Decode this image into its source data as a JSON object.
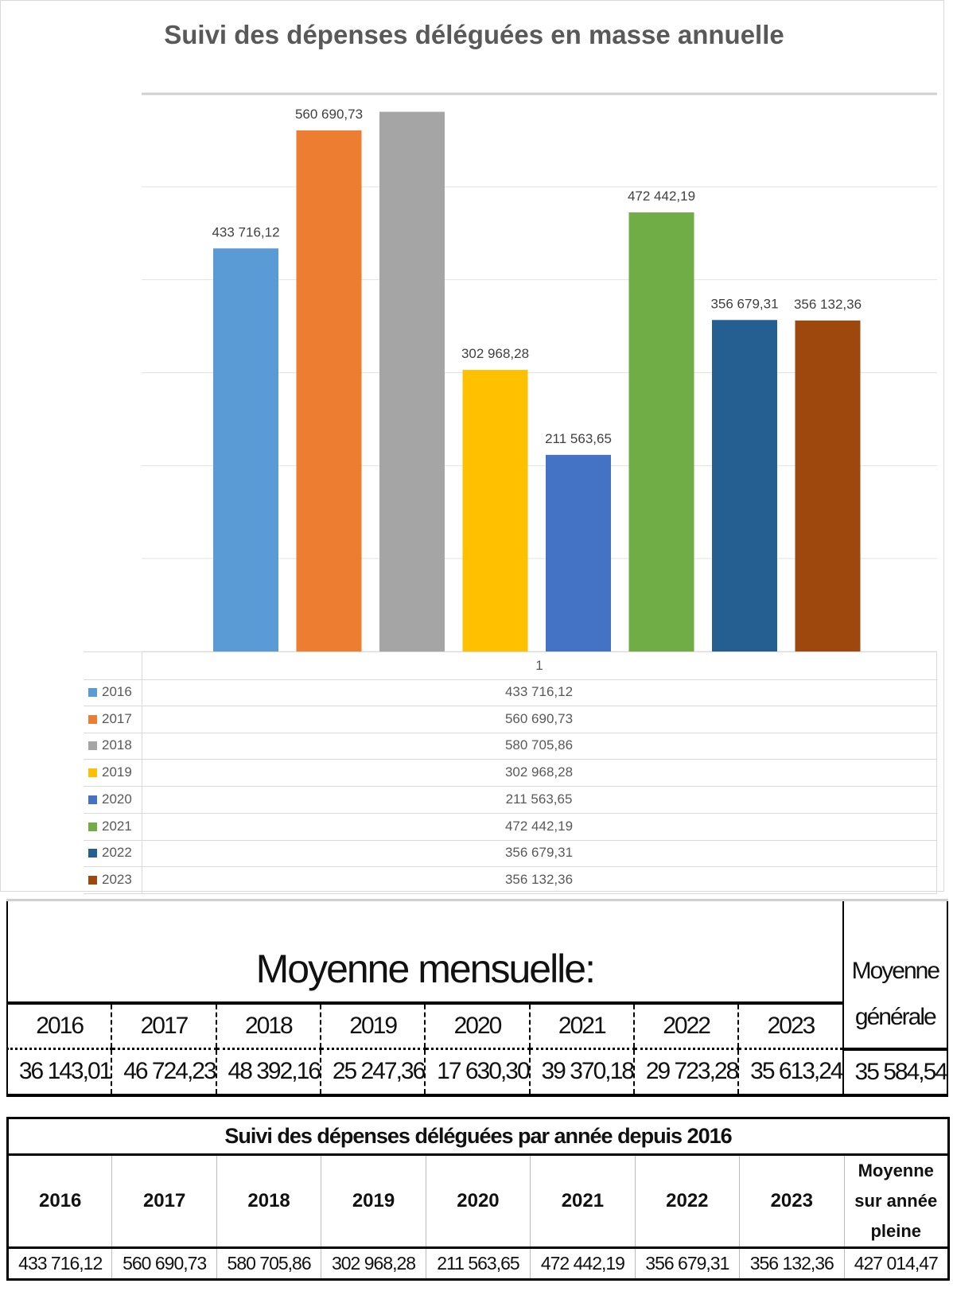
{
  "chart_data": {
    "type": "bar",
    "title": "Suivi des dépenses déléguées en masse annuelle",
    "category_label": "1",
    "ylim": [
      0,
      600000
    ],
    "gridline_step": 100000,
    "grid": true,
    "legend": "left-in-table",
    "series": [
      {
        "name": "2016",
        "value": 433716.12,
        "label": "433 716,12",
        "color": "#5b9bd5",
        "show_label": true
      },
      {
        "name": "2017",
        "value": 560690.73,
        "label": "560 690,73",
        "color": "#ed7d31",
        "show_label": true
      },
      {
        "name": "2018",
        "value": 580705.86,
        "label": "580 705,86",
        "color": "#a5a5a5",
        "show_label": false
      },
      {
        "name": "2019",
        "value": 302968.28,
        "label": "302 968,28",
        "color": "#ffc000",
        "show_label": true
      },
      {
        "name": "2020",
        "value": 211563.65,
        "label": "211 563,65",
        "color": "#4472c4",
        "show_label": true
      },
      {
        "name": "2021",
        "value": 472442.19,
        "label": "472 442,19",
        "color": "#70ad47",
        "show_label": true
      },
      {
        "name": "2022",
        "value": 356679.31,
        "label": "356 679,31",
        "color": "#255e91",
        "show_label": true
      },
      {
        "name": "2023",
        "value": 356132.36,
        "label": "356 132,36",
        "color": "#9e480e",
        "show_label": true
      }
    ]
  },
  "monthly": {
    "title": "Moyenne mensuelle:",
    "general_label_1": "Moyenne",
    "general_label_2": "générale",
    "years": [
      "2016",
      "2017",
      "2018",
      "2019",
      "2020",
      "2021",
      "2022",
      "2023"
    ],
    "values": [
      "36 143,01",
      "46 724,23",
      "48 392,16",
      "25 247,36",
      "17 630,30",
      "39 370,18",
      "29 723,28",
      "35 613,24"
    ],
    "general_value": "35 584,54"
  },
  "yearly": {
    "title": "Suivi des dépenses déléguées par année depuis 2016",
    "years": [
      "2016",
      "2017",
      "2018",
      "2019",
      "2020",
      "2021",
      "2022",
      "2023"
    ],
    "avg_label_1": "Moyenne",
    "avg_label_2": "sur année",
    "avg_label_3": "pleine",
    "values": [
      "433 716,12",
      "560 690,73",
      "580 705,86",
      "302 968,28",
      "211 563,65",
      "472 442,19",
      "356 679,31",
      "356 132,36"
    ],
    "avg_value": "427 014,47"
  }
}
